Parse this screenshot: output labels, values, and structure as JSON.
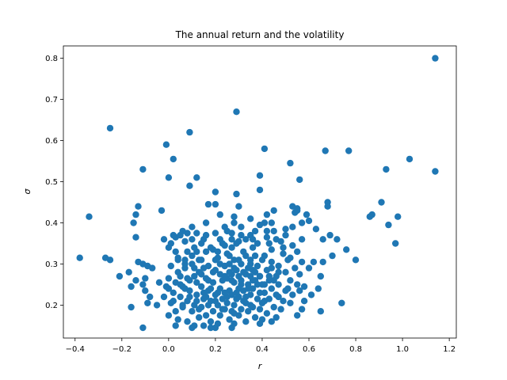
{
  "chart_data": {
    "type": "scatter",
    "title": "The annual return and the volatility",
    "xlabel": "r",
    "ylabel": "σ",
    "xlim": [
      -0.45,
      1.23
    ],
    "ylim": [
      0.12,
      0.83
    ],
    "xticks": [
      -0.4,
      -0.2,
      0.0,
      0.2,
      0.4,
      0.6,
      0.8,
      1.0,
      1.2
    ],
    "xtick_labels": [
      "−0.4",
      "−0.2",
      "0.0",
      "0.2",
      "0.4",
      "0.6",
      "0.8",
      "1.0",
      "1.2"
    ],
    "yticks": [
      0.2,
      0.3,
      0.4,
      0.5,
      0.6,
      0.7,
      0.8
    ],
    "ytick_labels": [
      "0.2",
      "0.3",
      "0.4",
      "0.5",
      "0.6",
      "0.7",
      "0.8"
    ],
    "grid": false,
    "color": "#1f77b4",
    "points": [
      [
        1.14,
        0.8
      ],
      [
        0.29,
        0.67
      ],
      [
        -0.25,
        0.63
      ],
      [
        0.09,
        0.62
      ],
      [
        -0.01,
        0.59
      ],
      [
        0.41,
        0.58
      ],
      [
        0.67,
        0.575
      ],
      [
        0.77,
        0.575
      ],
      [
        0.02,
        0.555
      ],
      [
        1.03,
        0.555
      ],
      [
        0.52,
        0.545
      ],
      [
        -0.11,
        0.53
      ],
      [
        0.93,
        0.53
      ],
      [
        1.14,
        0.525
      ],
      [
        0.39,
        0.515
      ],
      [
        0.12,
        0.51
      ],
      [
        0.0,
        0.51
      ],
      [
        0.56,
        0.505
      ],
      [
        0.09,
        0.49
      ],
      [
        0.39,
        0.48
      ],
      [
        0.2,
        0.475
      ],
      [
        0.29,
        0.47
      ],
      [
        0.68,
        0.45
      ],
      [
        0.91,
        0.45
      ],
      [
        -0.13,
        0.44
      ],
      [
        0.17,
        0.445
      ],
      [
        0.2,
        0.445
      ],
      [
        0.53,
        0.44
      ],
      [
        0.55,
        0.435
      ],
      [
        0.68,
        0.44
      ],
      [
        0.45,
        0.43
      ],
      [
        0.3,
        0.44
      ],
      [
        -0.03,
        0.43
      ],
      [
        0.42,
        0.42
      ],
      [
        0.54,
        0.425
      ],
      [
        0.87,
        0.42
      ],
      [
        0.98,
        0.415
      ],
      [
        0.86,
        0.415
      ],
      [
        -0.34,
        0.415
      ],
      [
        -0.14,
        0.42
      ],
      [
        0.28,
        0.415
      ],
      [
        0.6,
        0.405
      ],
      [
        0.41,
        0.4
      ],
      [
        0.39,
        0.395
      ],
      [
        0.94,
        0.395
      ],
      [
        -0.15,
        0.4
      ],
      [
        0.31,
        0.39
      ],
      [
        0.24,
        0.39
      ],
      [
        0.5,
        0.385
      ],
      [
        0.63,
        0.385
      ],
      [
        0.45,
        0.38
      ],
      [
        0.08,
        0.375
      ],
      [
        0.05,
        0.37
      ],
      [
        0.35,
        0.37
      ],
      [
        0.69,
        0.37
      ],
      [
        0.27,
        0.375
      ],
      [
        0.12,
        0.375
      ],
      [
        0.2,
        0.375
      ],
      [
        0.03,
        0.365
      ],
      [
        0.1,
        0.36
      ],
      [
        0.16,
        0.37
      ],
      [
        0.22,
        0.36
      ],
      [
        0.42,
        0.365
      ],
      [
        0.33,
        0.36
      ],
      [
        0.57,
        0.36
      ],
      [
        -0.14,
        0.365
      ],
      [
        0.07,
        0.355
      ],
      [
        0.14,
        0.35
      ],
      [
        0.3,
        0.355
      ],
      [
        0.38,
        0.35
      ],
      [
        0.48,
        0.355
      ],
      [
        0.66,
        0.36
      ],
      [
        0.72,
        0.36
      ],
      [
        0.97,
        0.35
      ],
      [
        0.53,
        0.345
      ],
      [
        0.24,
        0.345
      ],
      [
        0.01,
        0.35
      ],
      [
        0.11,
        0.34
      ],
      [
        0.19,
        0.335
      ],
      [
        0.27,
        0.34
      ],
      [
        0.36,
        0.34
      ],
      [
        0.44,
        0.335
      ],
      [
        0.76,
        0.335
      ],
      [
        0.55,
        0.33
      ],
      [
        0.16,
        0.33
      ],
      [
        0.25,
        0.325
      ],
      [
        0.32,
        0.33
      ],
      [
        0.41,
        0.32
      ],
      [
        0.49,
        0.325
      ],
      [
        0.7,
        0.32
      ],
      [
        0.1,
        0.32
      ],
      [
        0.21,
        0.315
      ],
      [
        0.04,
        0.315
      ],
      [
        0.52,
        0.315
      ],
      [
        0.8,
        0.31
      ],
      [
        -0.38,
        0.315
      ],
      [
        -0.27,
        0.315
      ],
      [
        -0.25,
        0.31
      ],
      [
        0.62,
        0.305
      ],
      [
        0.66,
        0.305
      ],
      [
        0.13,
        0.31
      ],
      [
        0.28,
        0.31
      ],
      [
        0.35,
        0.31
      ],
      [
        0.44,
        0.305
      ],
      [
        0.57,
        0.305
      ],
      [
        -0.13,
        0.305
      ],
      [
        -0.11,
        0.3
      ],
      [
        0.07,
        0.3
      ],
      [
        0.01,
        0.295
      ],
      [
        0.17,
        0.295
      ],
      [
        0.24,
        0.295
      ],
      [
        0.31,
        0.3
      ],
      [
        0.38,
        0.295
      ],
      [
        0.47,
        0.295
      ],
      [
        0.54,
        0.29
      ],
      [
        0.6,
        0.29
      ],
      [
        -0.09,
        0.295
      ],
      [
        -0.07,
        0.29
      ],
      [
        0.11,
        0.29
      ],
      [
        0.2,
        0.285
      ],
      [
        0.29,
        0.285
      ],
      [
        0.36,
        0.285
      ],
      [
        0.42,
        0.285
      ],
      [
        0.5,
        0.28
      ],
      [
        -0.17,
        0.28
      ],
      [
        0.04,
        0.28
      ],
      [
        0.14,
        0.275
      ],
      [
        0.22,
        0.275
      ],
      [
        0.27,
        0.275
      ],
      [
        0.33,
        0.275
      ],
      [
        0.39,
        0.27
      ],
      [
        0.46,
        0.27
      ],
      [
        0.56,
        0.275
      ],
      [
        0.65,
        0.27
      ],
      [
        -0.21,
        0.27
      ],
      [
        -0.1,
        0.265
      ],
      [
        0.0,
        0.265
      ],
      [
        0.08,
        0.265
      ],
      [
        0.16,
        0.265
      ],
      [
        0.25,
        0.265
      ],
      [
        0.31,
        0.26
      ],
      [
        0.37,
        0.26
      ],
      [
        0.43,
        0.26
      ],
      [
        0.52,
        0.26
      ],
      [
        -0.14,
        0.26
      ],
      [
        -0.04,
        0.255
      ],
      [
        0.03,
        0.255
      ],
      [
        0.12,
        0.255
      ],
      [
        0.19,
        0.255
      ],
      [
        0.28,
        0.255
      ],
      [
        0.34,
        0.25
      ],
      [
        0.4,
        0.25
      ],
      [
        0.47,
        0.25
      ],
      [
        0.55,
        0.25
      ],
      [
        -0.11,
        0.25
      ],
      [
        -0.01,
        0.245
      ],
      [
        0.06,
        0.245
      ],
      [
        0.14,
        0.245
      ],
      [
        0.22,
        0.24
      ],
      [
        0.3,
        0.24
      ],
      [
        0.36,
        0.24
      ],
      [
        0.44,
        0.24
      ],
      [
        0.58,
        0.245
      ],
      [
        0.64,
        0.24
      ],
      [
        -0.16,
        0.245
      ],
      [
        0.09,
        0.235
      ],
      [
        0.17,
        0.235
      ],
      [
        0.26,
        0.235
      ],
      [
        0.32,
        0.235
      ],
      [
        0.41,
        0.23
      ],
      [
        0.5,
        0.235
      ],
      [
        0.56,
        0.235
      ],
      [
        -0.1,
        0.235
      ],
      [
        0.02,
        0.23
      ],
      [
        0.12,
        0.225
      ],
      [
        0.2,
        0.225
      ],
      [
        0.27,
        0.225
      ],
      [
        0.35,
        0.225
      ],
      [
        0.46,
        0.225
      ],
      [
        0.53,
        0.225
      ],
      [
        0.61,
        0.225
      ],
      [
        -0.08,
        0.22
      ],
      [
        0.05,
        0.22
      ],
      [
        0.15,
        0.215
      ],
      [
        0.23,
        0.215
      ],
      [
        0.29,
        0.215
      ],
      [
        0.38,
        0.215
      ],
      [
        0.43,
        0.215
      ],
      [
        0.49,
        0.21
      ],
      [
        0.08,
        0.21
      ],
      [
        0.18,
        0.21
      ],
      [
        0.25,
        0.205
      ],
      [
        0.33,
        0.205
      ],
      [
        0.4,
        0.205
      ],
      [
        0.52,
        0.205
      ],
      [
        0.58,
        0.21
      ],
      [
        -0.09,
        0.205
      ],
      [
        0.74,
        0.205
      ],
      [
        0.01,
        0.205
      ],
      [
        -0.05,
        0.2
      ],
      [
        0.11,
        0.2
      ],
      [
        0.21,
        0.2
      ],
      [
        0.28,
        0.2
      ],
      [
        0.36,
        0.195
      ],
      [
        0.45,
        0.195
      ],
      [
        -0.16,
        0.195
      ],
      [
        0.06,
        0.195
      ],
      [
        0.14,
        0.195
      ],
      [
        0.24,
        0.19
      ],
      [
        0.31,
        0.19
      ],
      [
        0.39,
        0.19
      ],
      [
        0.48,
        0.19
      ],
      [
        0.57,
        0.19
      ],
      [
        0.03,
        0.185
      ],
      [
        0.1,
        0.185
      ],
      [
        0.19,
        0.185
      ],
      [
        0.27,
        0.185
      ],
      [
        0.34,
        0.185
      ],
      [
        0.42,
        0.18
      ],
      [
        0.65,
        0.185
      ],
      [
        0.55,
        0.175
      ],
      [
        0.0,
        0.175
      ],
      [
        0.16,
        0.175
      ],
      [
        0.22,
        0.175
      ],
      [
        0.3,
        0.175
      ],
      [
        0.37,
        0.17
      ],
      [
        0.46,
        0.17
      ],
      [
        0.13,
        0.17
      ],
      [
        0.04,
        0.165
      ],
      [
        0.26,
        0.165
      ],
      [
        0.4,
        0.165
      ],
      [
        0.08,
        0.16
      ],
      [
        0.18,
        0.16
      ],
      [
        0.33,
        0.16
      ],
      [
        0.44,
        0.16
      ],
      [
        0.21,
        0.155
      ],
      [
        0.28,
        0.155
      ],
      [
        0.39,
        0.155
      ],
      [
        0.11,
        0.15
      ],
      [
        0.03,
        0.15
      ],
      [
        0.15,
        0.15
      ],
      [
        -0.11,
        0.145
      ],
      [
        0.2,
        0.145
      ],
      [
        0.27,
        0.145
      ],
      [
        0.1,
        0.145
      ],
      [
        0.18,
        0.145
      ],
      [
        0.32,
        0.28
      ],
      [
        0.35,
        0.3
      ],
      [
        0.37,
        0.32
      ],
      [
        0.34,
        0.24
      ],
      [
        0.26,
        0.3
      ],
      [
        0.23,
        0.26
      ],
      [
        0.18,
        0.24
      ],
      [
        0.29,
        0.23
      ],
      [
        0.31,
        0.25
      ],
      [
        0.36,
        0.26
      ],
      [
        0.39,
        0.23
      ],
      [
        0.41,
        0.25
      ],
      [
        0.33,
        0.22
      ],
      [
        0.25,
        0.22
      ],
      [
        0.21,
        0.23
      ],
      [
        0.15,
        0.23
      ],
      [
        0.24,
        0.27
      ],
      [
        0.28,
        0.29
      ],
      [
        0.34,
        0.29
      ],
      [
        0.3,
        0.27
      ],
      [
        0.27,
        0.26
      ],
      [
        0.37,
        0.28
      ],
      [
        0.43,
        0.27
      ],
      [
        0.44,
        0.29
      ],
      [
        0.4,
        0.31
      ],
      [
        0.33,
        0.32
      ],
      [
        0.26,
        0.28
      ],
      [
        0.22,
        0.3
      ],
      [
        0.19,
        0.28
      ],
      [
        0.17,
        0.26
      ],
      [
        0.13,
        0.28
      ],
      [
        0.09,
        0.26
      ],
      [
        0.07,
        0.24
      ],
      [
        0.05,
        0.27
      ],
      [
        0.1,
        0.3
      ],
      [
        0.14,
        0.31
      ],
      [
        0.21,
        0.33
      ],
      [
        0.29,
        0.35
      ],
      [
        0.36,
        0.36
      ],
      [
        0.43,
        0.35
      ],
      [
        0.49,
        0.34
      ],
      [
        0.51,
        0.31
      ],
      [
        0.47,
        0.28
      ],
      [
        0.38,
        0.25
      ],
      [
        0.32,
        0.21
      ],
      [
        0.28,
        0.18
      ],
      [
        0.23,
        0.19
      ],
      [
        0.17,
        0.2
      ],
      [
        0.12,
        0.21
      ],
      [
        0.06,
        0.2
      ],
      [
        0.02,
        0.21
      ],
      [
        -0.02,
        0.22
      ],
      [
        0.0,
        0.24
      ],
      [
        0.05,
        0.25
      ],
      [
        0.09,
        0.22
      ],
      [
        0.13,
        0.19
      ],
      [
        0.16,
        0.22
      ],
      [
        0.2,
        0.21
      ],
      [
        0.24,
        0.23
      ],
      [
        0.3,
        0.22
      ],
      [
        0.35,
        0.2
      ],
      [
        0.41,
        0.21
      ],
      [
        0.47,
        0.22
      ],
      [
        0.51,
        0.24
      ],
      [
        0.45,
        0.26
      ],
      [
        0.39,
        0.27
      ],
      [
        0.35,
        0.27
      ],
      [
        0.3,
        0.31
      ],
      [
        0.26,
        0.32
      ],
      [
        0.2,
        0.31
      ],
      [
        0.15,
        0.29
      ],
      [
        0.11,
        0.27
      ],
      [
        0.07,
        0.29
      ],
      [
        0.04,
        0.31
      ],
      [
        0.08,
        0.33
      ],
      [
        0.12,
        0.33
      ],
      [
        0.18,
        0.34
      ],
      [
        0.23,
        0.35
      ],
      [
        0.27,
        0.36
      ],
      [
        0.31,
        0.37
      ],
      [
        0.37,
        0.38
      ],
      [
        0.42,
        0.38
      ],
      [
        0.46,
        0.36
      ],
      [
        0.5,
        0.37
      ],
      [
        0.53,
        0.39
      ],
      [
        0.57,
        0.4
      ],
      [
        0.59,
        0.42
      ],
      [
        0.55,
        0.43
      ],
      [
        0.44,
        0.4
      ],
      [
        0.35,
        0.41
      ],
      [
        0.28,
        0.4
      ],
      [
        0.22,
        0.42
      ],
      [
        0.16,
        0.4
      ],
      [
        0.1,
        0.39
      ],
      [
        0.06,
        0.38
      ],
      [
        0.02,
        0.37
      ],
      [
        -0.02,
        0.36
      ],
      [
        0.0,
        0.34
      ],
      [
        0.03,
        0.33
      ],
      [
        0.07,
        0.31
      ],
      [
        0.15,
        0.36
      ],
      [
        0.25,
        0.38
      ]
    ]
  }
}
